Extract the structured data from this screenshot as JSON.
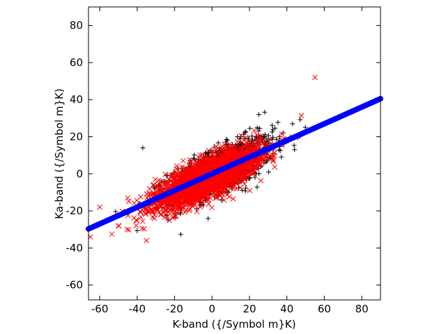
{
  "chart_data": {
    "type": "scatter",
    "title": "",
    "xlabel": "K-band ({/Symbol m}K)",
    "ylabel": "Ka-band ({/Symbol m}K)",
    "xlim": [
      -66,
      90
    ],
    "ylim": [
      -68,
      90
    ],
    "xticks": [
      -60,
      -40,
      -20,
      0,
      20,
      40,
      60,
      80
    ],
    "yticks": [
      -60,
      -40,
      -20,
      0,
      20,
      40,
      60,
      80
    ],
    "grid": false,
    "legend": "none",
    "series": [
      {
        "marker": "plus",
        "color": "#000000",
        "distribution": {
          "n": 1400,
          "x_mean": 5,
          "x_sd": 14,
          "slope": 0.45,
          "intercept": 0,
          "residual_sd": 6
        },
        "outliers": [
          [
            -37,
            14
          ],
          [
            25,
            32
          ],
          [
            43,
            27
          ]
        ]
      },
      {
        "marker": "x",
        "color": "#ff0000",
        "distribution": {
          "n": 2600,
          "x_mean": -3,
          "x_sd": 14,
          "slope": 0.45,
          "intercept": -1,
          "residual_sd": 5
        },
        "outliers": [
          [
            55,
            52
          ],
          [
            -65,
            -34
          ],
          [
            -60,
            -18
          ],
          [
            -35,
            -36
          ],
          [
            -50,
            -28
          ]
        ]
      },
      {
        "marker": "circle",
        "color": "#0000ff",
        "line": {
          "x_start": -66,
          "x_end": 90,
          "step": 0.5,
          "slope": 0.45,
          "intercept": 0
        }
      }
    ]
  }
}
